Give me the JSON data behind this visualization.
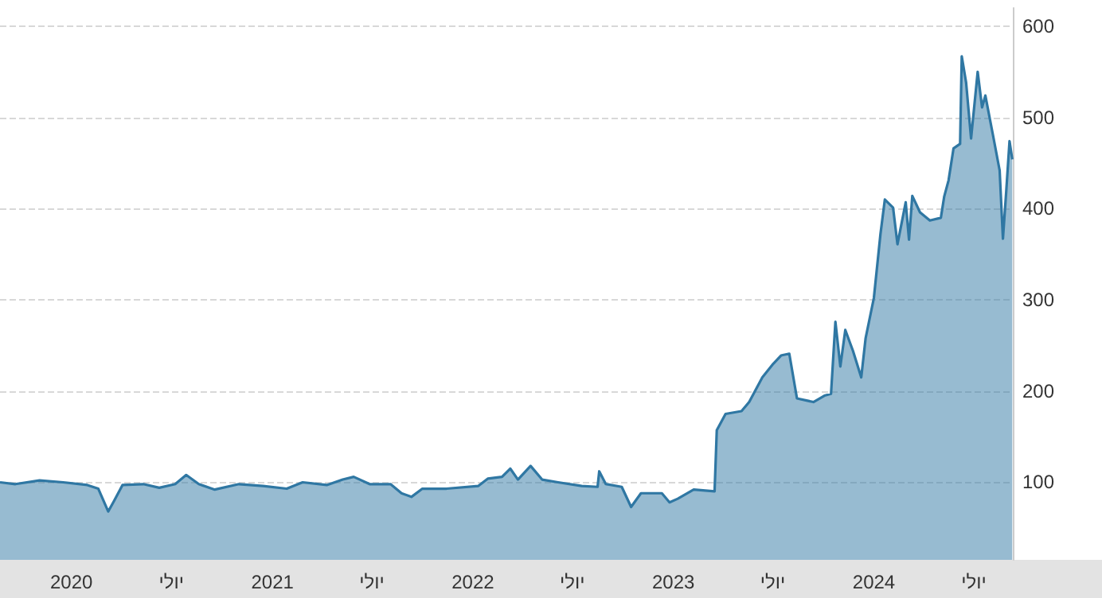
{
  "chart_data": {
    "type": "area",
    "color": "#2f77a3",
    "x": [
      "2019-08-24",
      "2019-09-21",
      "2019-11-04",
      "2019-12-17",
      "2020-01-30",
      "2020-02-19",
      "2020-03-08",
      "2020-03-19",
      "2020-04-03",
      "2020-05-11",
      "2020-06-09",
      "2020-07-08",
      "2020-07-28",
      "2020-08-20",
      "2020-09-18",
      "2020-11-01",
      "2020-12-15",
      "2021-01-27",
      "2021-02-25",
      "2021-04-10",
      "2021-05-09",
      "2021-05-29",
      "2021-06-27",
      "2021-08-04",
      "2021-08-24",
      "2021-09-11",
      "2021-10-01",
      "2021-11-14",
      "2022-01-11",
      "2022-01-28",
      "2022-02-23",
      "2022-03-10",
      "2022-03-24",
      "2022-04-16",
      "2022-05-07",
      "2022-06-05",
      "2022-07-18",
      "2022-08-16",
      "2022-08-19",
      "2022-08-31",
      "2022-09-29",
      "2022-10-16",
      "2022-11-03",
      "2022-12-11",
      "2022-12-25",
      "2023-01-09",
      "2023-02-07",
      "2023-03-17",
      "2023-03-21",
      "2023-04-06",
      "2023-05-05",
      "2023-05-19",
      "2023-06-12",
      "2023-07-02",
      "2023-07-16",
      "2023-07-31",
      "2023-08-14",
      "2023-09-13",
      "2023-10-03",
      "2023-10-15",
      "2023-10-23",
      "2023-11-01",
      "2023-11-10",
      "2023-11-24",
      "2023-12-09",
      "2023-12-17",
      "2024-01-01",
      "2024-01-13",
      "2024-01-21",
      "2024-02-05",
      "2024-02-13",
      "2024-02-28",
      "2024-03-05",
      "2024-03-11",
      "2024-03-25",
      "2024-04-12",
      "2024-05-02",
      "2024-05-08",
      "2024-05-16",
      "2024-05-25",
      "2024-06-06",
      "2024-06-09",
      "2024-06-17",
      "2024-06-26",
      "2024-07-08",
      "2024-07-16",
      "2024-07-22",
      "2024-08-06",
      "2024-08-17",
      "2024-08-23",
      "2024-08-29",
      "2024-09-04",
      "2024-09-09"
    ],
    "values": [
      100,
      98,
      102,
      100,
      97,
      93,
      68,
      80,
      97,
      98,
      94,
      98,
      108,
      98,
      92,
      98,
      96,
      93,
      100,
      97,
      103,
      106,
      98,
      98,
      88,
      84,
      93,
      93,
      96,
      104,
      106,
      115,
      103,
      118,
      103,
      100,
      96,
      95,
      112,
      98,
      95,
      73,
      88,
      88,
      78,
      82,
      92,
      90,
      157,
      175,
      178,
      188,
      215,
      230,
      239,
      241,
      192,
      188,
      195,
      197,
      276,
      227,
      267,
      244,
      215,
      258,
      302,
      372,
      410,
      401,
      361,
      407,
      366,
      414,
      396,
      387,
      390,
      413,
      431,
      466,
      471,
      567,
      538,
      477,
      550,
      511,
      524,
      477,
      442,
      367,
      419,
      474,
      454
    ],
    "xlim": [
      "2019-08-24",
      "2024-09-10"
    ],
    "xticks": [
      {
        "value": "2020-01-01",
        "label": "2020"
      },
      {
        "value": "2020-07-01",
        "label": "יולי"
      },
      {
        "value": "2021-01-01",
        "label": "2021"
      },
      {
        "value": "2021-07-01",
        "label": "יולי"
      },
      {
        "value": "2022-01-01",
        "label": "2022"
      },
      {
        "value": "2022-07-01",
        "label": "יולי"
      },
      {
        "value": "2023-01-01",
        "label": "2023"
      },
      {
        "value": "2023-07-01",
        "label": "יולי"
      },
      {
        "value": "2024-01-01",
        "label": "2024"
      },
      {
        "value": "2024-07-01",
        "label": "יולי"
      }
    ],
    "ylim": [
      15,
      620
    ],
    "yticks": [
      100,
      200,
      300,
      400,
      500,
      600
    ],
    "grid": "y"
  }
}
